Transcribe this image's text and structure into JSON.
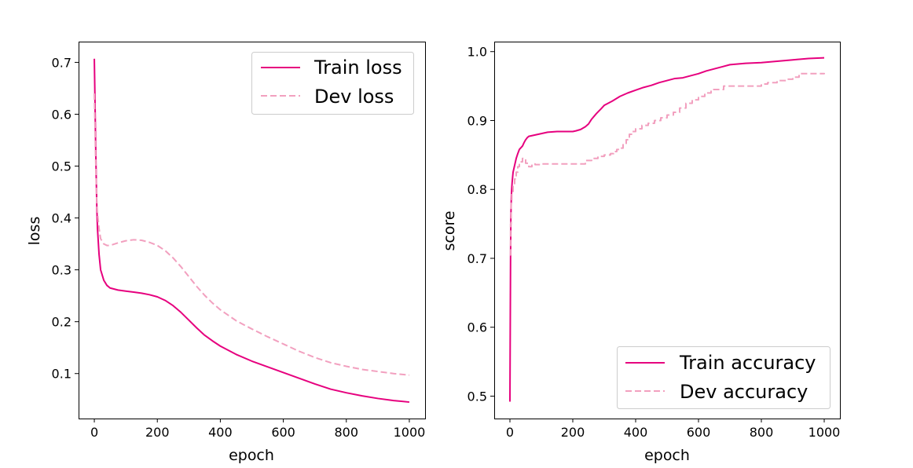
{
  "chart_data": [
    {
      "type": "line",
      "xlabel": "epoch",
      "ylabel": "loss",
      "xlim": [
        -50,
        1050
      ],
      "ylim": [
        0.0133,
        0.74
      ],
      "xticks": [
        0,
        200,
        400,
        600,
        800,
        1000
      ],
      "yticks": [
        0.1,
        0.2,
        0.3,
        0.4,
        0.5,
        0.6,
        0.7
      ],
      "xtick_labels": [
        "0",
        "200",
        "400",
        "600",
        "800",
        "1000"
      ],
      "ytick_labels": [
        "0.1",
        "0.2",
        "0.3",
        "0.4",
        "0.5",
        "0.6",
        "0.7"
      ],
      "legend_position": "top-right",
      "series": [
        {
          "name": "Train loss",
          "color": "#e6007e",
          "style": "solid",
          "x": [
            0,
            2,
            4,
            6,
            8,
            10,
            15,
            20,
            30,
            40,
            50,
            75,
            100,
            125,
            150,
            175,
            200,
            225,
            250,
            275,
            300,
            325,
            350,
            375,
            400,
            450,
            500,
            550,
            600,
            650,
            700,
            750,
            800,
            850,
            900,
            950,
            1000
          ],
          "y": [
            0.707,
            0.63,
            0.55,
            0.48,
            0.42,
            0.38,
            0.33,
            0.3,
            0.28,
            0.27,
            0.265,
            0.261,
            0.259,
            0.257,
            0.255,
            0.252,
            0.248,
            0.241,
            0.231,
            0.218,
            0.203,
            0.188,
            0.174,
            0.163,
            0.153,
            0.137,
            0.124,
            0.113,
            0.102,
            0.091,
            0.08,
            0.07,
            0.063,
            0.057,
            0.052,
            0.048,
            0.045
          ]
        },
        {
          "name": "Dev loss",
          "color": "#f2a0bf",
          "style": "dashed",
          "x": [
            0,
            2,
            4,
            6,
            8,
            10,
            15,
            20,
            30,
            40,
            50,
            75,
            100,
            125,
            150,
            175,
            200,
            225,
            250,
            275,
            300,
            325,
            350,
            375,
            400,
            450,
            500,
            550,
            600,
            650,
            700,
            750,
            800,
            850,
            900,
            950,
            1000
          ],
          "y": [
            0.64,
            0.58,
            0.52,
            0.47,
            0.43,
            0.41,
            0.38,
            0.36,
            0.35,
            0.347,
            0.347,
            0.352,
            0.356,
            0.358,
            0.357,
            0.353,
            0.347,
            0.337,
            0.323,
            0.306,
            0.287,
            0.268,
            0.251,
            0.236,
            0.223,
            0.202,
            0.186,
            0.171,
            0.157,
            0.143,
            0.131,
            0.121,
            0.114,
            0.108,
            0.104,
            0.1,
            0.097
          ]
        }
      ]
    },
    {
      "type": "line",
      "xlabel": "epoch",
      "ylabel": "score",
      "xlim": [
        -50,
        1050
      ],
      "ylim": [
        0.4675,
        1.0145
      ],
      "xticks": [
        0,
        200,
        400,
        600,
        800,
        1000
      ],
      "yticks": [
        0.5,
        0.6,
        0.7,
        0.8,
        0.9,
        1.0
      ],
      "xtick_labels": [
        "0",
        "200",
        "400",
        "600",
        "800",
        "1000"
      ],
      "ytick_labels": [
        "0.5",
        "0.6",
        "0.7",
        "0.8",
        "0.9",
        "1.0"
      ],
      "legend_position": "bottom-right",
      "series": [
        {
          "name": "Train accuracy",
          "color": "#e6007e",
          "style": "solid",
          "step": false,
          "x": [
            0,
            2,
            3,
            4,
            5,
            7,
            10,
            15,
            20,
            25,
            30,
            40,
            45,
            50,
            55,
            60,
            70,
            80,
            90,
            100,
            120,
            150,
            200,
            210,
            225,
            240,
            250,
            260,
            275,
            290,
            300,
            325,
            350,
            375,
            400,
            425,
            450,
            475,
            500,
            525,
            550,
            575,
            600,
            625,
            650,
            675,
            700,
            750,
            800,
            850,
            900,
            950,
            1000
          ],
          "y": [
            0.492,
            0.7,
            0.76,
            0.78,
            0.795,
            0.81,
            0.825,
            0.835,
            0.845,
            0.852,
            0.858,
            0.863,
            0.868,
            0.872,
            0.875,
            0.877,
            0.878,
            0.879,
            0.88,
            0.881,
            0.883,
            0.884,
            0.884,
            0.885,
            0.887,
            0.891,
            0.895,
            0.902,
            0.91,
            0.917,
            0.922,
            0.928,
            0.935,
            0.94,
            0.944,
            0.948,
            0.951,
            0.955,
            0.958,
            0.961,
            0.962,
            0.965,
            0.968,
            0.972,
            0.975,
            0.978,
            0.981,
            0.983,
            0.984,
            0.986,
            0.988,
            0.99,
            0.991
          ]
        },
        {
          "name": "Dev accuracy",
          "color": "#f2a0bf",
          "style": "dashed",
          "step": true,
          "x": [
            0,
            2,
            4,
            6,
            10,
            15,
            20,
            25,
            30,
            40,
            50,
            60,
            70,
            80,
            100,
            150,
            200,
            240,
            260,
            280,
            300,
            320,
            330,
            340,
            350,
            360,
            370,
            380,
            390,
            400,
            420,
            440,
            460,
            480,
            500,
            520,
            540,
            560,
            580,
            600,
            620,
            640,
            680,
            750,
            800,
            820,
            850,
            880,
            900,
            920,
            1000
          ],
          "y": [
            0.705,
            0.75,
            0.78,
            0.795,
            0.805,
            0.815,
            0.825,
            0.833,
            0.84,
            0.845,
            0.838,
            0.833,
            0.837,
            0.836,
            0.837,
            0.837,
            0.837,
            0.842,
            0.845,
            0.848,
            0.85,
            0.852,
            0.855,
            0.858,
            0.86,
            0.865,
            0.872,
            0.88,
            0.884,
            0.888,
            0.893,
            0.896,
            0.9,
            0.904,
            0.908,
            0.912,
            0.918,
            0.925,
            0.93,
            0.935,
            0.94,
            0.945,
            0.95,
            0.95,
            0.953,
            0.955,
            0.958,
            0.96,
            0.963,
            0.968,
            0.969
          ]
        }
      ]
    }
  ]
}
